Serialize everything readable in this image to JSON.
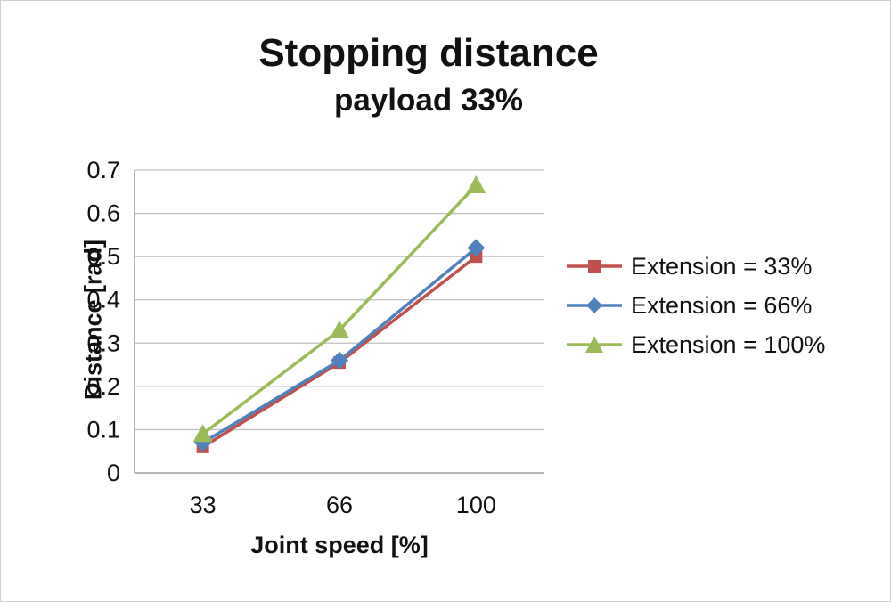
{
  "chart": {
    "title": "Stopping distance",
    "subtitle": "payload 33%"
  },
  "chart_data": {
    "type": "line",
    "title": "Stopping distance",
    "subtitle": "payload 33%",
    "xlabel": "Joint speed [%]",
    "ylabel": "Distance [rad]",
    "categories": [
      "33",
      "66",
      "100"
    ],
    "series": [
      {
        "name": "Extension = 33%",
        "marker": "square",
        "color": "#C0504D",
        "values": [
          0.06,
          0.255,
          0.5
        ]
      },
      {
        "name": "Extension = 66%",
        "marker": "diamond",
        "color": "#4F81BD",
        "values": [
          0.07,
          0.26,
          0.52
        ]
      },
      {
        "name": "Extension = 100%",
        "marker": "triangle",
        "color": "#9BBB59",
        "values": [
          0.09,
          0.33,
          0.665
        ]
      }
    ],
    "ylim": [
      0,
      0.7
    ],
    "yticks": [
      0,
      0.1,
      0.2,
      0.3,
      0.4,
      0.5,
      0.6,
      0.7
    ],
    "ytick_labels": [
      "0",
      "0.1",
      "0.2",
      "0.3",
      "0.4",
      "0.5",
      "0.6",
      "0.7"
    ],
    "grid": "horizontal",
    "legend_position": "right",
    "axis_color": "#8a8a8a",
    "grid_color": "#bfbfbf"
  }
}
